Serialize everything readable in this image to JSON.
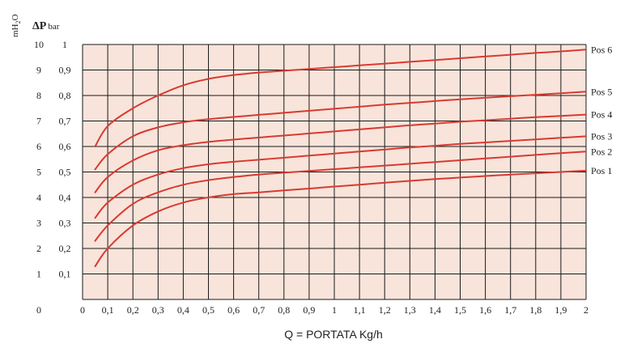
{
  "chart_data": {
    "type": "line",
    "colors": {
      "plot_bg": "#f8e4da",
      "grid": "#1a1a1a",
      "curve": "#d83a32"
    },
    "grid": true,
    "x_range": [
      0,
      2
    ],
    "y_range": [
      0,
      1
    ],
    "y2_range": [
      0,
      10
    ],
    "x_tick_labels": [
      "0",
      "0,1",
      "0,2",
      "0,3",
      "0,4",
      "0,5",
      "0,6",
      "0,7",
      "0,8",
      "0,9",
      "1",
      "1,1",
      "1,2",
      "1,3",
      "1,4",
      "1,5",
      "1,6",
      "1,7",
      "1,8",
      "1,9",
      "2"
    ],
    "y_tick_labels": [
      "0,1",
      "0,2",
      "0,3",
      "0,4",
      "0,5",
      "0,6",
      "0,7",
      "0,8",
      "0,9",
      "1"
    ],
    "y2_tick_labels": [
      "0",
      "1",
      "2",
      "3",
      "4",
      "5",
      "6",
      "7",
      "8",
      "9",
      "10"
    ],
    "y_unit_delta": "Δ",
    "y_unit_p": "P",
    "y_unit_bar": "bar",
    "y2_unit": "mH",
    "y2_unit_sub": "2",
    "y2_unit_tail": "O",
    "xlabel": "Q = PORTATA Kg/h",
    "x": [
      0.05,
      0.1,
      0.2,
      0.3,
      0.4,
      0.5,
      0.6,
      0.7,
      0.8,
      0.9,
      1.0,
      1.1,
      1.2,
      1.3,
      1.4,
      1.5,
      1.6,
      1.7,
      1.8,
      1.9,
      2.0
    ],
    "series": [
      {
        "name": "Pos 1",
        "values": [
          0.13,
          0.2,
          0.29,
          0.345,
          0.38,
          0.4,
          0.413,
          0.42,
          0.428,
          0.435,
          0.443,
          0.45,
          0.458,
          0.465,
          0.472,
          0.478,
          0.484,
          0.49,
          0.495,
          0.5,
          0.505
        ]
      },
      {
        "name": "Pos 2",
        "values": [
          0.23,
          0.29,
          0.375,
          0.42,
          0.45,
          0.468,
          0.48,
          0.49,
          0.497,
          0.504,
          0.511,
          0.518,
          0.525,
          0.532,
          0.539,
          0.546,
          0.553,
          0.56,
          0.567,
          0.574,
          0.58
        ]
      },
      {
        "name": "Pos 3",
        "values": [
          0.32,
          0.38,
          0.45,
          0.49,
          0.515,
          0.53,
          0.54,
          0.548,
          0.556,
          0.564,
          0.572,
          0.58,
          0.588,
          0.596,
          0.603,
          0.61,
          0.616,
          0.622,
          0.628,
          0.634,
          0.64
        ]
      },
      {
        "name": "Pos 4",
        "values": [
          0.42,
          0.48,
          0.545,
          0.585,
          0.605,
          0.618,
          0.627,
          0.635,
          0.643,
          0.651,
          0.659,
          0.667,
          0.675,
          0.683,
          0.69,
          0.697,
          0.703,
          0.709,
          0.715,
          0.72,
          0.725
        ]
      },
      {
        "name": "Pos 5",
        "values": [
          0.51,
          0.57,
          0.64,
          0.675,
          0.695,
          0.707,
          0.716,
          0.724,
          0.732,
          0.74,
          0.748,
          0.756,
          0.764,
          0.771,
          0.778,
          0.785,
          0.791,
          0.797,
          0.803,
          0.809,
          0.815
        ]
      },
      {
        "name": "Pos 6",
        "values": [
          0.6,
          0.68,
          0.75,
          0.8,
          0.84,
          0.865,
          0.88,
          0.89,
          0.897,
          0.904,
          0.911,
          0.918,
          0.925,
          0.932,
          0.939,
          0.946,
          0.953,
          0.96,
          0.967,
          0.973,
          0.98
        ]
      }
    ]
  }
}
